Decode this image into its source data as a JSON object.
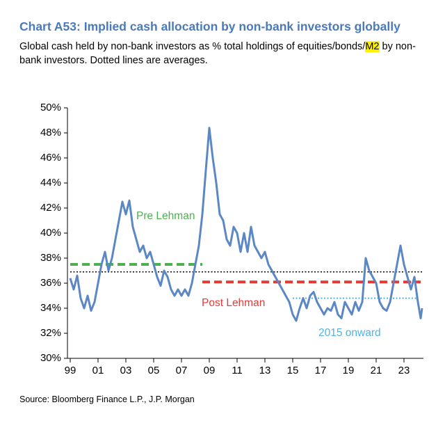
{
  "chart_data": {
    "type": "line",
    "title": "Chart A53: Implied cash allocation by non-bank investors globally",
    "subtitle": [
      "Global cash held by non-bank investors as % total holdings of equities/bonds/",
      "M2",
      " by non-bank investors. Dotted lines are averages."
    ],
    "source": "Source: Bloomberg Finance L.P., J.P. Morgan",
    "x": [
      1999.0,
      1999.25,
      1999.5,
      1999.75,
      2000.0,
      2000.25,
      2000.5,
      2000.75,
      2001.0,
      2001.25,
      2001.5,
      2001.75,
      2002.0,
      2002.25,
      2002.5,
      2002.75,
      2003.0,
      2003.25,
      2003.5,
      2003.75,
      2004.0,
      2004.25,
      2004.5,
      2004.75,
      2005.0,
      2005.25,
      2005.5,
      2005.75,
      2006.0,
      2006.25,
      2006.5,
      2006.75,
      2007.0,
      2007.25,
      2007.5,
      2007.75,
      2008.0,
      2008.25,
      2008.5,
      2008.75,
      2009.0,
      2009.25,
      2009.5,
      2009.75,
      2010.0,
      2010.25,
      2010.5,
      2010.75,
      2011.0,
      2011.25,
      2011.5,
      2011.75,
      2012.0,
      2012.25,
      2012.5,
      2012.75,
      2013.0,
      2013.25,
      2013.5,
      2013.75,
      2014.0,
      2014.25,
      2014.5,
      2014.75,
      2015.0,
      2015.25,
      2015.5,
      2015.75,
      2016.0,
      2016.25,
      2016.5,
      2016.75,
      2017.0,
      2017.25,
      2017.5,
      2017.75,
      2018.0,
      2018.25,
      2018.5,
      2018.75,
      2019.0,
      2019.25,
      2019.5,
      2019.75,
      2020.0,
      2020.25,
      2020.5,
      2020.75,
      2021.0,
      2021.25,
      2021.5,
      2021.75,
      2022.0,
      2022.25,
      2022.5,
      2022.75,
      2023.0,
      2023.25,
      2023.5,
      2023.75,
      2024.0,
      2024.2,
      2024.3
    ],
    "series": [
      {
        "color": "#5b87c5",
        "values": [
          36.4,
          35.5,
          36.6,
          34.8,
          34.0,
          35.0,
          33.8,
          34.5,
          36.0,
          37.5,
          38.5,
          37.0,
          38.0,
          39.5,
          41.0,
          42.5,
          41.5,
          42.6,
          40.5,
          39.5,
          38.5,
          39.0,
          38.0,
          38.5,
          37.5,
          36.5,
          35.8,
          37.0,
          36.5,
          35.5,
          35.0,
          35.5,
          35.0,
          35.5,
          35.0,
          36.0,
          37.5,
          39.0,
          41.5,
          45.0,
          48.4,
          46.0,
          44.0,
          41.5,
          41.0,
          39.5,
          39.0,
          40.5,
          40.0,
          38.5,
          40.0,
          38.5,
          40.5,
          39.0,
          38.5,
          38.0,
          38.5,
          37.5,
          37.0,
          36.5,
          36.0,
          35.5,
          35.0,
          34.5,
          33.5,
          33.0,
          34.0,
          34.8,
          34.0,
          35.0,
          35.3,
          34.5,
          34.0,
          33.5,
          34.0,
          33.8,
          34.5,
          33.5,
          33.2,
          34.5,
          34.0,
          33.5,
          34.5,
          33.8,
          34.5,
          38.0,
          37.0,
          36.5,
          36.0,
          34.5,
          34.0,
          33.8,
          34.5,
          36.0,
          37.5,
          39.0,
          37.5,
          36.5,
          35.5,
          36.5,
          34.5,
          33.2,
          34.0
        ]
      }
    ],
    "averages": [
      {
        "value": 36.9,
        "x": [
          1999.0,
          2024.3
        ],
        "color": "#000000",
        "style": "dotted"
      },
      {
        "value": 37.5,
        "x": [
          1999.0,
          2008.5
        ],
        "color": "#4caf50",
        "style": "dashed"
      },
      {
        "value": 36.1,
        "x": [
          2008.5,
          2024.2
        ],
        "color": "#e53935",
        "style": "dashed"
      },
      {
        "value": 34.8,
        "x": [
          2015.0,
          2024.0
        ],
        "color": "#4fb3e8",
        "style": "dotted"
      }
    ],
    "annotations": [
      {
        "text": "Pre Lehman",
        "color": "#4caf50"
      },
      {
        "text": "Post Lehman",
        "color": "#e53935"
      },
      {
        "text": "2015 onward",
        "color": "#4fb3e8"
      }
    ],
    "xlim": [
      1998.8,
      2024.4
    ],
    "xticks": [
      {
        "value": 1999,
        "label": "99"
      },
      {
        "value": 2001,
        "label": "01"
      },
      {
        "value": 2003,
        "label": "03"
      },
      {
        "value": 2005,
        "label": "05"
      },
      {
        "value": 2007,
        "label": "07"
      },
      {
        "value": 2009,
        "label": "09"
      },
      {
        "value": 2011,
        "label": "11"
      },
      {
        "value": 2013,
        "label": "13"
      },
      {
        "value": 2015,
        "label": "15"
      },
      {
        "value": 2017,
        "label": "17"
      },
      {
        "value": 2019,
        "label": "19"
      },
      {
        "value": 2021,
        "label": "21"
      },
      {
        "value": 2023,
        "label": "23"
      }
    ],
    "ylim": [
      30,
      50
    ],
    "yticks": [
      {
        "value": 30,
        "label": "30%"
      },
      {
        "value": 32,
        "label": "32%"
      },
      {
        "value": 34,
        "label": "34%"
      },
      {
        "value": 36,
        "label": "36%"
      },
      {
        "value": 38,
        "label": "38%"
      },
      {
        "value": 40,
        "label": "40%"
      },
      {
        "value": 42,
        "label": "42%"
      },
      {
        "value": 44,
        "label": "44%"
      },
      {
        "value": 46,
        "label": "46%"
      },
      {
        "value": 48,
        "label": "48%"
      },
      {
        "value": 50,
        "label": "50%"
      }
    ],
    "grid": false
  }
}
